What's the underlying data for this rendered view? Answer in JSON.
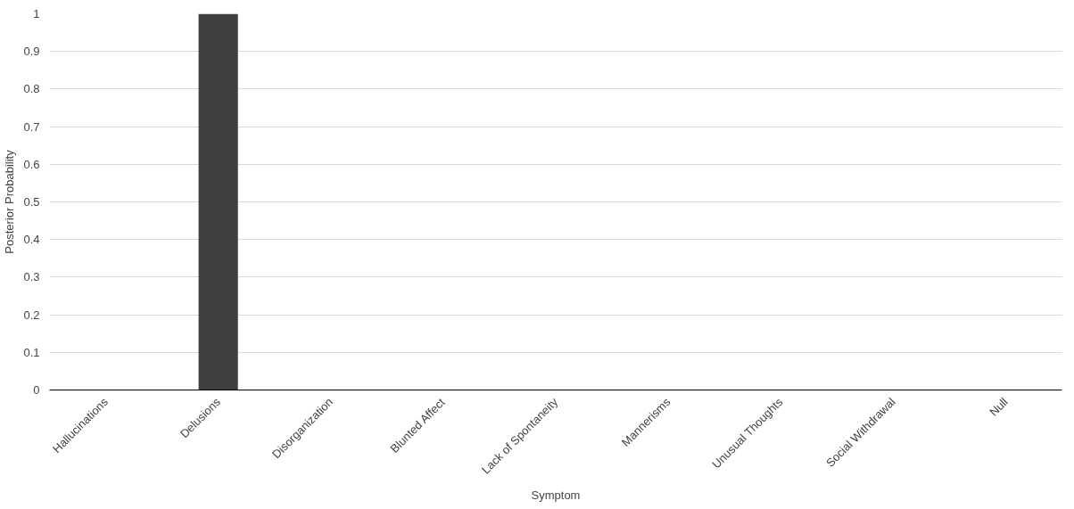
{
  "chart_data": {
    "type": "bar",
    "xlabel": "Symptom",
    "ylabel": "Posterior Probability",
    "categories": [
      "Hallucinations",
      "Delusions",
      "Disorganization",
      "Blunted Affect",
      "Lack of Spontaneity",
      "Mannerisms",
      "Unusual Thoughts",
      "Social Withdrawal",
      "Null"
    ],
    "values": [
      0,
      1,
      0,
      0,
      0,
      0,
      0,
      0,
      0
    ],
    "color": "#404040",
    "ylim": [
      0,
      1
    ],
    "yticks": [
      0,
      0.1,
      0.2,
      0.3,
      0.4,
      0.5,
      0.6,
      0.7,
      0.8,
      0.9,
      1
    ],
    "grid": "y"
  }
}
